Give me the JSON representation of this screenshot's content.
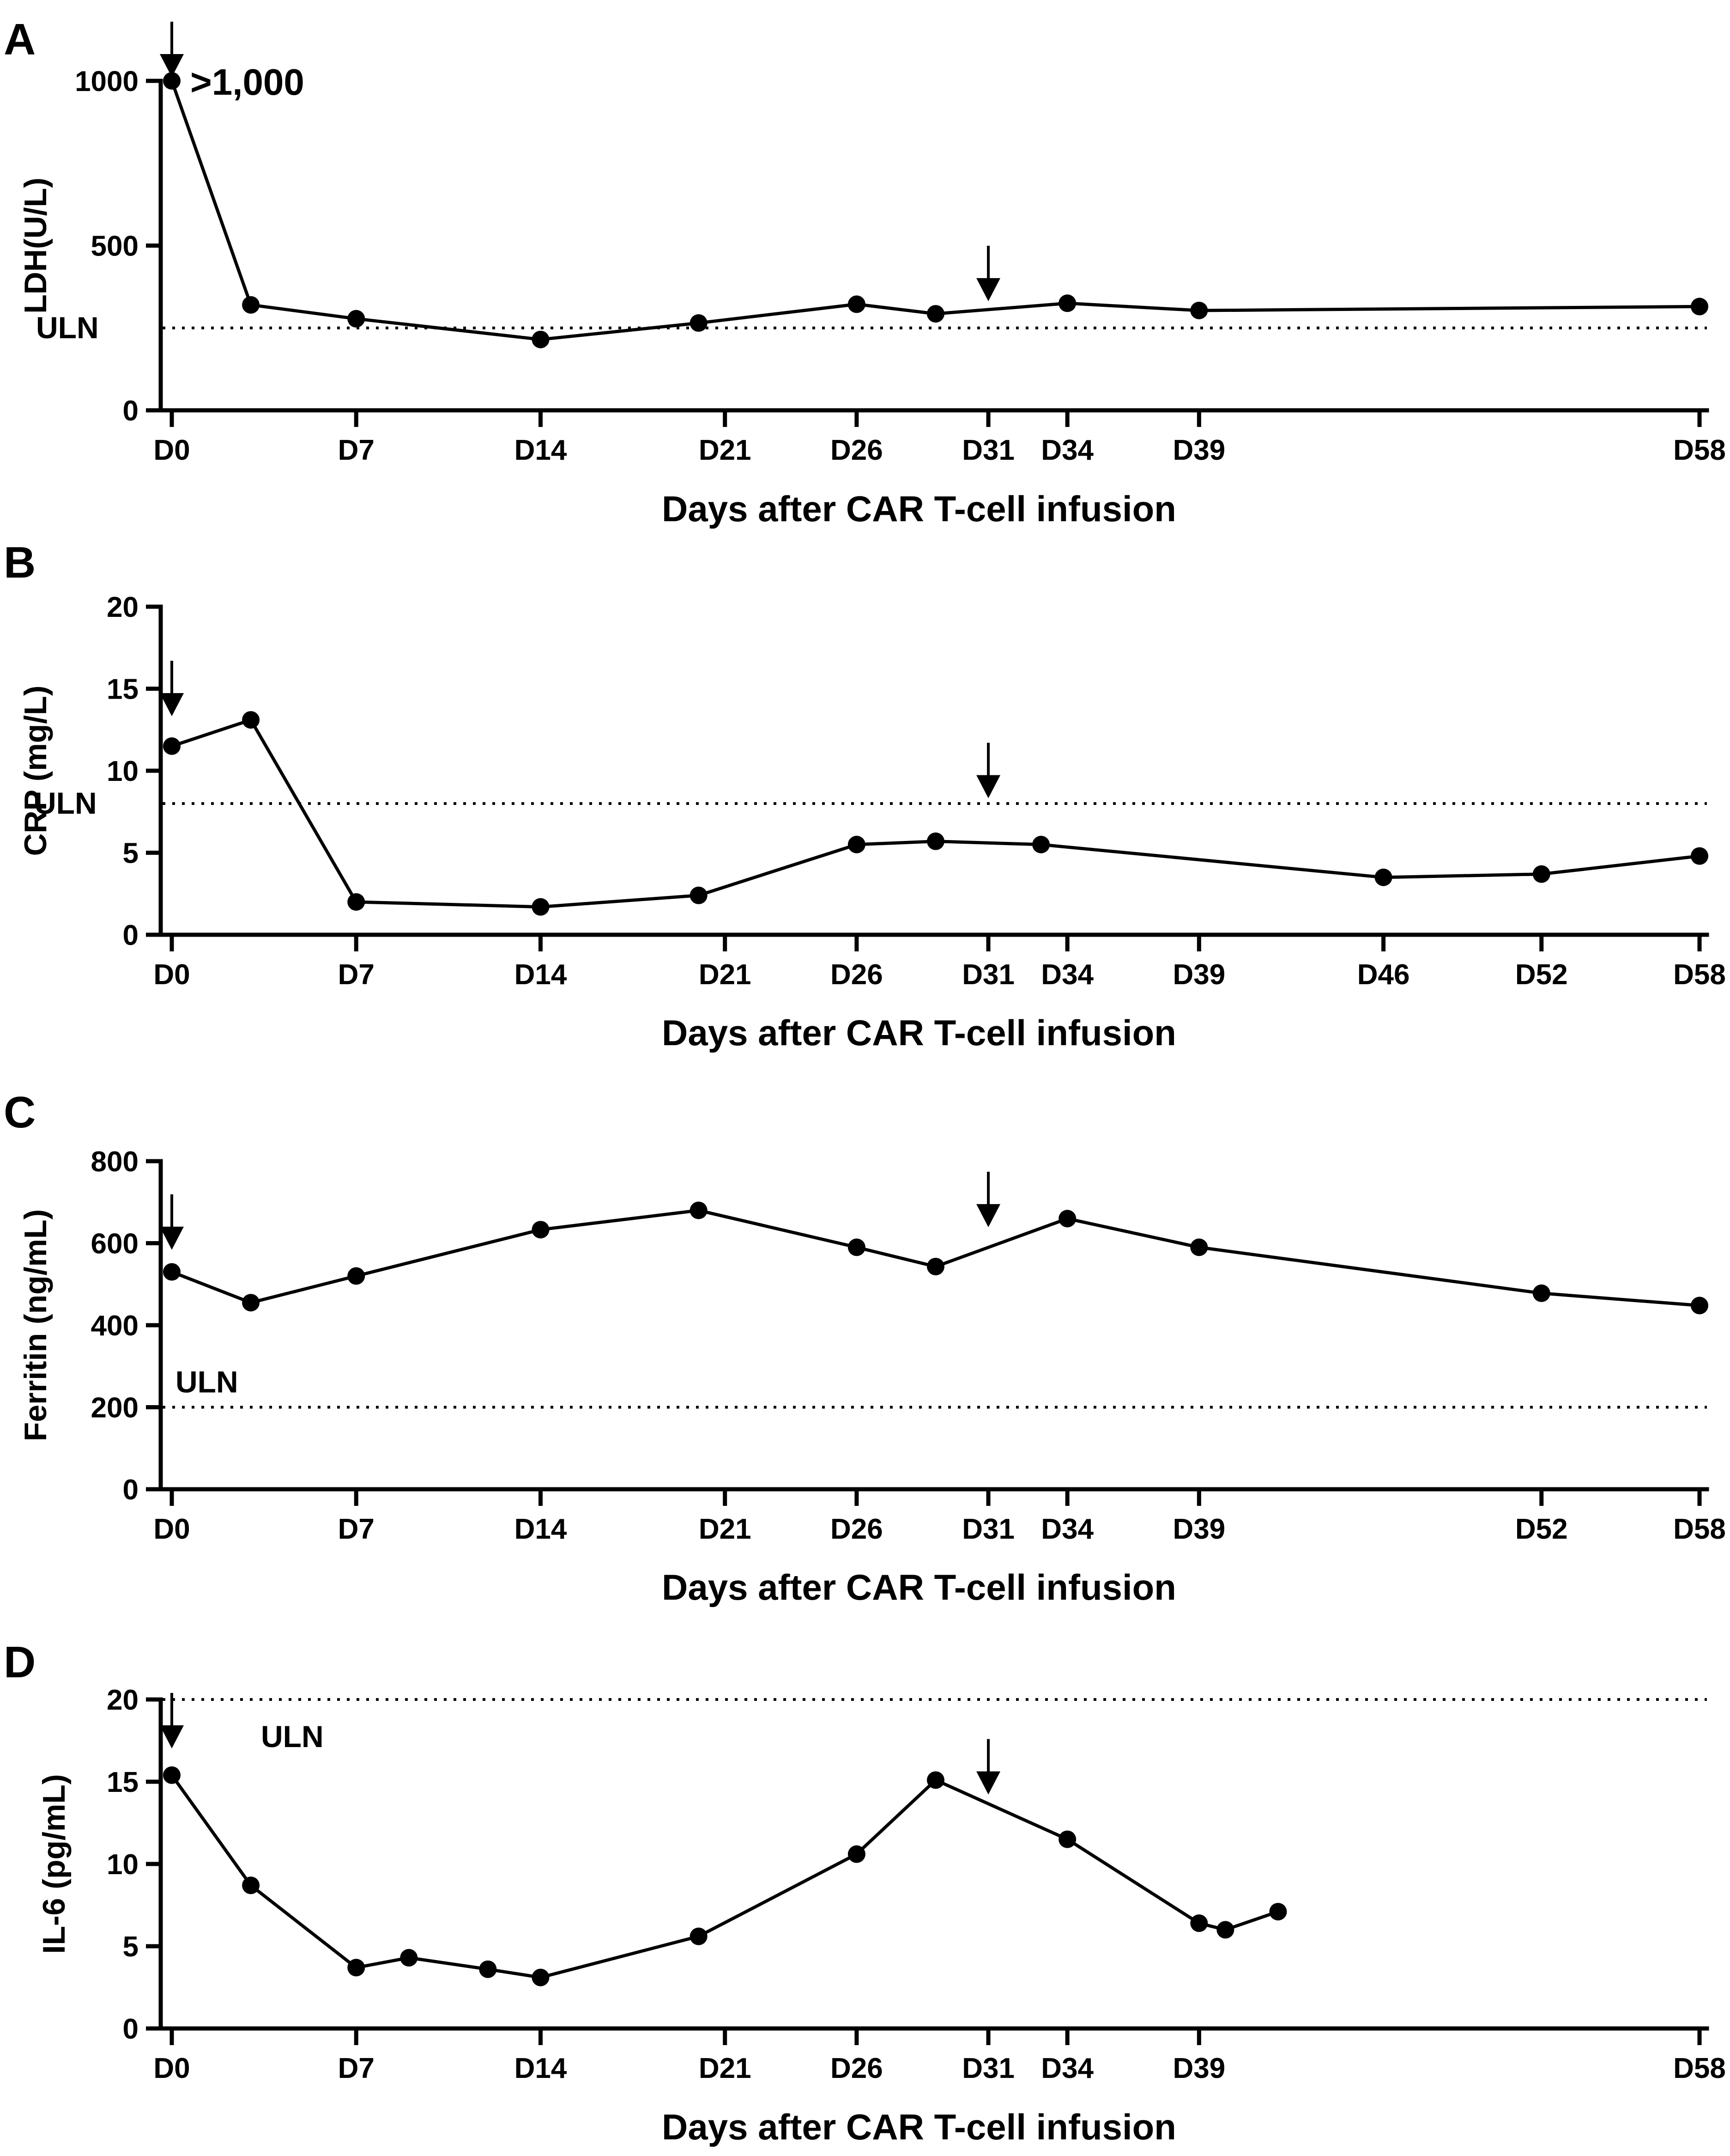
{
  "figure": {
    "xlabel_common": "Days after CAR T-cell infusion"
  },
  "chart_data": [
    {
      "panel": "A",
      "type": "line",
      "ylabel": "LDH(U/L)",
      "xlabel": "Days after CAR T-cell infusion",
      "xlim": [
        0,
        58
      ],
      "ylim": [
        0,
        1000
      ],
      "yticks": [
        0,
        500,
        1000
      ],
      "ytick_labels": [
        "0",
        "500",
        "1000"
      ],
      "xticks": [
        0,
        7,
        14,
        21,
        26,
        31,
        34,
        39,
        58
      ],
      "xtick_labels": [
        "D0",
        "D7",
        "D14",
        "D21",
        "D26",
        "D31",
        "D34",
        "D39",
        "D58"
      ],
      "uln": {
        "label": "ULN",
        "value": 250
      },
      "series": [
        {
          "name": "LDH",
          "x": [
            0,
            3,
            7,
            14,
            20,
            26,
            29,
            34,
            39,
            58
          ],
          "y": [
            1000,
            320,
            278,
            215,
            265,
            322,
            293,
            325,
            303,
            315
          ]
        }
      ],
      "annotations": [
        {
          "text": ">1,000",
          "x": 0,
          "y": 1000
        }
      ],
      "arrows": [
        {
          "x": 0,
          "y_tip": 1000
        },
        {
          "x": 31,
          "y_tip": 320
        }
      ]
    },
    {
      "panel": "B",
      "type": "line",
      "ylabel": "CRP (mg/L)",
      "xlabel": "Days after CAR T-cell infusion",
      "xlim": [
        0,
        58
      ],
      "ylim": [
        0,
        20
      ],
      "yticks": [
        0,
        5,
        10,
        15,
        20
      ],
      "ytick_labels": [
        "0",
        "5",
        "10",
        "15",
        "20"
      ],
      "xticks": [
        0,
        7,
        14,
        21,
        26,
        31,
        34,
        39,
        46,
        52,
        58
      ],
      "xtick_labels": [
        "D0",
        "D7",
        "D14",
        "D21",
        "D26",
        "D31",
        "D34",
        "D39",
        "D46",
        "D52",
        "D58"
      ],
      "uln": {
        "label": "ULN",
        "value": 8
      },
      "series": [
        {
          "name": "CRP",
          "x": [
            0,
            3,
            7,
            14,
            20,
            26,
            29,
            33,
            46,
            52,
            58
          ],
          "y": [
            11.5,
            13.1,
            2.0,
            1.7,
            2.4,
            5.5,
            5.7,
            5.5,
            3.5,
            3.7,
            4.8
          ]
        }
      ],
      "arrows": [
        {
          "x": 0,
          "y_tip": 13.1
        },
        {
          "x": 31,
          "y_tip": 8.1
        }
      ]
    },
    {
      "panel": "C",
      "type": "line",
      "ylabel": "Ferritin (ng/mL)",
      "xlabel": "Days after CAR T-cell infusion",
      "xlim": [
        0,
        58
      ],
      "ylim": [
        0,
        800
      ],
      "yticks": [
        0,
        200,
        400,
        600,
        800
      ],
      "ytick_labels": [
        "0",
        "200",
        "400",
        "600",
        "800"
      ],
      "xticks": [
        0,
        7,
        14,
        21,
        26,
        31,
        34,
        39,
        52,
        58
      ],
      "xtick_labels": [
        "D0",
        "D7",
        "D14",
        "D21",
        "D26",
        "D31",
        "D34",
        "D39",
        "D52",
        "D58"
      ],
      "uln": {
        "label": "ULN",
        "value": 200
      },
      "series": [
        {
          "name": "Ferritin",
          "x": [
            0,
            3,
            7,
            14,
            20,
            26,
            29,
            34,
            39,
            52,
            58
          ],
          "y": [
            530,
            455,
            520,
            633,
            680,
            590,
            543,
            660,
            590,
            478,
            448
          ]
        }
      ],
      "arrows": [
        {
          "x": 0,
          "y_tip": 575
        },
        {
          "x": 31,
          "y_tip": 630
        }
      ]
    },
    {
      "panel": "D",
      "type": "line",
      "ylabel": "IL-6 (pg/mL)",
      "xlabel": "Days after CAR T-cell infusion",
      "xlim": [
        0,
        58
      ],
      "ylim": [
        0,
        20
      ],
      "yticks": [
        0,
        5,
        10,
        15,
        20
      ],
      "ytick_labels": [
        "0",
        "5",
        "10",
        "15",
        "20"
      ],
      "xticks": [
        0,
        7,
        14,
        21,
        26,
        31,
        34,
        39,
        58
      ],
      "xtick_labels": [
        "D0",
        "D7",
        "D14",
        "D21",
        "D26",
        "D31",
        "D34",
        "D39",
        "D58"
      ],
      "uln": {
        "label": "ULN",
        "value": 20
      },
      "series": [
        {
          "name": "IL-6",
          "x": [
            0,
            3,
            7,
            9,
            12,
            14,
            20,
            26,
            29,
            34,
            39,
            40,
            42
          ],
          "y": [
            15.4,
            8.7,
            3.7,
            4.3,
            3.6,
            3.1,
            5.6,
            10.6,
            15.1,
            11.5,
            6.4,
            6.0,
            7.1
          ]
        }
      ],
      "arrows": [
        {
          "x": 0,
          "y_tip": 16.8
        },
        {
          "x": 31,
          "y_tip": 14.0
        }
      ]
    }
  ]
}
